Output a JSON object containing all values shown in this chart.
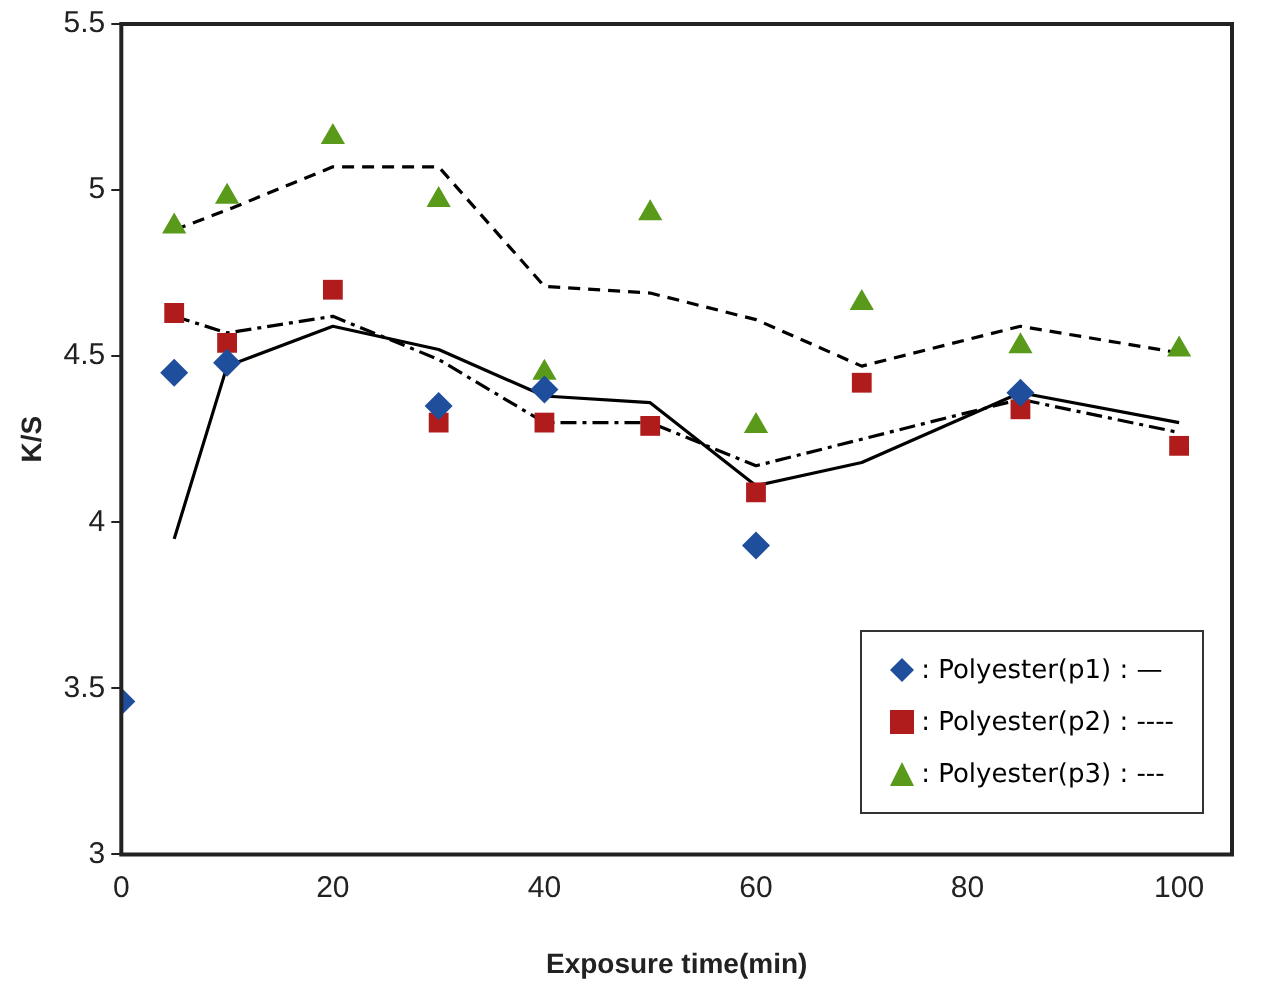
{
  "chart_data": {
    "type": "scatter",
    "xlabel": "Exposure time(min)",
    "ylabel": "K/S",
    "xlim": [
      0,
      105
    ],
    "xticks": [
      0,
      20,
      40,
      60,
      80,
      100
    ],
    "ylim": [
      3,
      5.5
    ],
    "yticks": [
      3,
      3.5,
      4,
      4.5,
      5,
      5.5
    ],
    "grid": false,
    "legend": "bottom right",
    "series": [
      {
        "name": ": Polyester(p1) : —",
        "type": "scatter",
        "marker": "diamond",
        "color": "#1f4e9c",
        "x": [
          0,
          5,
          10,
          20,
          30,
          40,
          50,
          60,
          70,
          85
        ],
        "values": [
          3.46,
          4.45,
          4.48,
          null,
          4.35,
          4.4,
          null,
          3.93,
          null,
          4.39
        ]
      },
      {
        "name": ": Polyester(p2) : ----",
        "type": "scatter",
        "marker": "square",
        "color": "#b01c1c",
        "x": [
          5,
          10,
          20,
          30,
          40,
          50,
          60,
          70,
          85,
          100
        ],
        "values": [
          4.63,
          4.54,
          4.7,
          4.3,
          4.3,
          4.29,
          4.09,
          4.42,
          4.34,
          4.23
        ]
      },
      {
        "name": ": Polyester(p3) : ---",
        "type": "scatter",
        "marker": "triangle",
        "color": "#5a9a1a",
        "x": [
          5,
          10,
          20,
          30,
          40,
          50,
          60,
          70,
          85,
          100
        ],
        "values": [
          4.89,
          4.98,
          5.16,
          4.97,
          4.45,
          4.93,
          4.29,
          4.66,
          4.53,
          4.52
        ]
      },
      {
        "type": "line",
        "marker": "none",
        "line_style": "solid",
        "color": "#000000",
        "x": [
          5,
          10,
          20,
          30,
          40,
          50,
          60,
          70,
          85,
          100
        ],
        "values": [
          3.95,
          4.47,
          4.59,
          4.52,
          4.38,
          4.36,
          4.11,
          4.18,
          4.39,
          4.3
        ]
      },
      {
        "type": "line",
        "marker": "none",
        "line_style": "dashdot",
        "color": "#000000",
        "x": [
          5,
          10,
          20,
          30,
          40,
          50,
          60,
          70,
          85,
          100
        ],
        "values": [
          4.62,
          4.57,
          4.62,
          4.49,
          4.3,
          4.3,
          4.17,
          4.25,
          4.37,
          4.27
        ]
      },
      {
        "type": "line",
        "marker": "none",
        "line_style": "dashed",
        "color": "#000000",
        "x": [
          5,
          10,
          20,
          30,
          40,
          50,
          60,
          70,
          85,
          100
        ],
        "values": [
          4.88,
          4.94,
          5.07,
          5.07,
          4.71,
          4.69,
          4.61,
          4.47,
          4.59,
          4.51
        ]
      }
    ]
  }
}
